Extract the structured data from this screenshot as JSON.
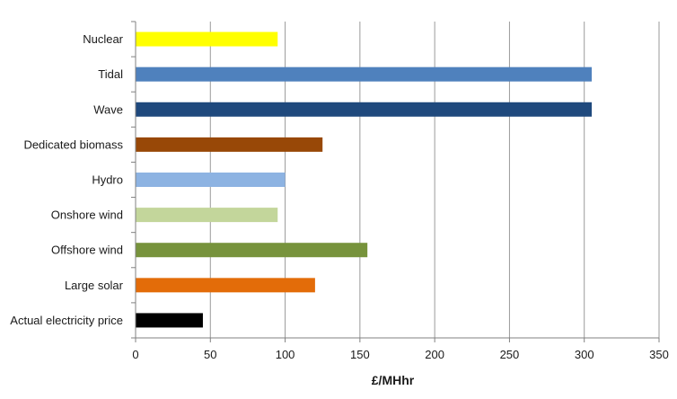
{
  "chart_data": {
    "type": "bar",
    "orientation": "horizontal",
    "title": "",
    "xlabel": "£/MHhr",
    "ylabel": "",
    "xlim": [
      0,
      350
    ],
    "x_ticks": [
      0,
      50,
      100,
      150,
      200,
      250,
      300,
      350
    ],
    "grid": "vertical",
    "legend": "none",
    "categories": [
      "Nuclear",
      "Tidal",
      "Wave",
      "Dedicated biomass",
      "Hydro",
      "Onshore wind",
      "Offshore wind",
      "Large solar",
      "Actual electricity price"
    ],
    "values": [
      95,
      305,
      305,
      125,
      100,
      95,
      155,
      120,
      45
    ],
    "colors": [
      "#ffff00",
      "#4f81bd",
      "#1f497d",
      "#984807",
      "#8db3e2",
      "#c3d69b",
      "#77933c",
      "#e36c09",
      "#000000"
    ]
  }
}
